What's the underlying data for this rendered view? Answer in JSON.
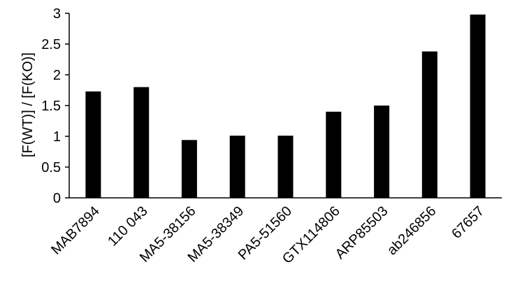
{
  "chart_data": {
    "type": "bar",
    "title": "",
    "xlabel": "",
    "ylabel": "[F(WT)] / [F(KO)]",
    "ylim": [
      0,
      3
    ],
    "yticks": [
      "0",
      "0.5",
      "1",
      "1.5",
      "2",
      "2.5",
      "3"
    ],
    "grid": false,
    "legend": "none",
    "bar_color": "#000000",
    "categories": [
      "MAB7894",
      "110 043",
      "MA5-38156",
      "MA5-38349",
      "PA5-51560",
      "GTX114806",
      "ARP85503",
      "ab246856",
      "67657"
    ],
    "values": [
      1.73,
      1.8,
      0.94,
      1.01,
      1.01,
      1.4,
      1.5,
      2.38,
      2.98
    ]
  }
}
